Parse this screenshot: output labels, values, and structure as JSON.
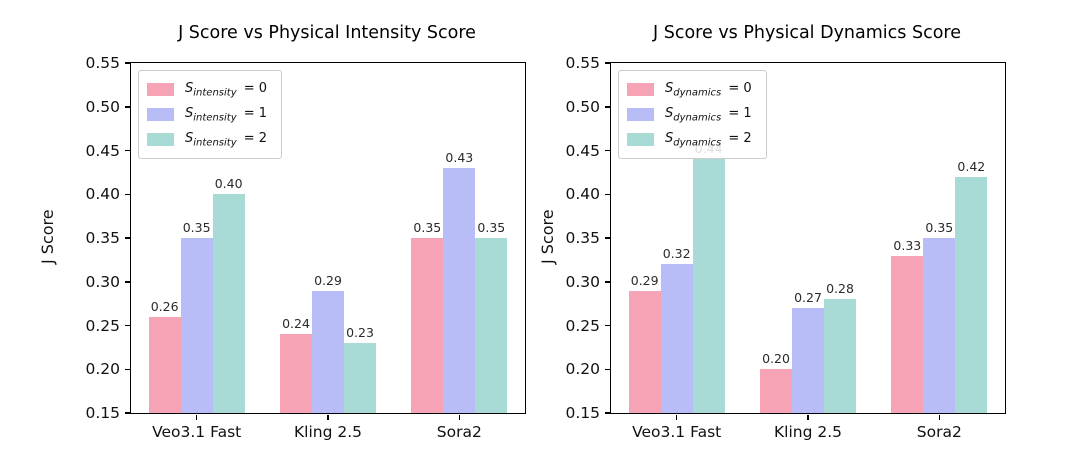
{
  "figure": {
    "background": "#ffffff"
  },
  "chart_data": [
    {
      "type": "bar",
      "title": "J Score vs Physical Intensity Score",
      "ylabel": "J Score",
      "xlabel": "",
      "categories": [
        "Veo3.1 Fast",
        "Kling 2.5",
        "Sora2"
      ],
      "series": [
        {
          "legend_var": "S",
          "legend_sub": "intensity",
          "legend_eq": "= 0",
          "color": "#f6a3b5",
          "values": [
            0.26,
            0.24,
            0.35
          ]
        },
        {
          "legend_var": "S",
          "legend_sub": "intensity",
          "legend_eq": "= 1",
          "color": "#b9bdf7",
          "values": [
            0.35,
            0.29,
            0.43
          ]
        },
        {
          "legend_var": "S",
          "legend_sub": "intensity",
          "legend_eq": "= 2",
          "color": "#a9dbd6",
          "values": [
            0.4,
            0.23,
            0.35
          ]
        }
      ],
      "ylim": [
        0.15,
        0.55
      ],
      "yticks": [
        "0.55",
        "0.50",
        "0.45",
        "0.40",
        "0.35",
        "0.30",
        "0.25",
        "0.20",
        "0.15"
      ],
      "bar_labels": [
        [
          "0.26",
          "0.24",
          "0.35"
        ],
        [
          "0.35",
          "0.29",
          "0.43"
        ],
        [
          "0.40",
          "0.23",
          "0.35"
        ]
      ],
      "legend_position": "upper left",
      "grid": false
    },
    {
      "type": "bar",
      "title": "J Score vs Physical Dynamics Score",
      "ylabel": "J Score",
      "xlabel": "",
      "categories": [
        "Veo3.1 Fast",
        "Kling 2.5",
        "Sora2"
      ],
      "series": [
        {
          "legend_var": "S",
          "legend_sub": "dynamics",
          "legend_eq": "= 0",
          "color": "#f6a3b5",
          "values": [
            0.29,
            0.2,
            0.33
          ]
        },
        {
          "legend_var": "S",
          "legend_sub": "dynamics",
          "legend_eq": "= 1",
          "color": "#b9bdf7",
          "values": [
            0.32,
            0.27,
            0.35
          ]
        },
        {
          "legend_var": "S",
          "legend_sub": "dynamics",
          "legend_eq": "= 2",
          "color": "#a9dbd6",
          "values": [
            0.44,
            0.28,
            0.42
          ]
        }
      ],
      "ylim": [
        0.15,
        0.55
      ],
      "yticks": [
        "0.55",
        "0.50",
        "0.45",
        "0.40",
        "0.35",
        "0.30",
        "0.25",
        "0.20",
        "0.15"
      ],
      "bar_labels": [
        [
          "0.29",
          "0.20",
          "0.33"
        ],
        [
          "0.32",
          "0.27",
          "0.35"
        ],
        [
          "0.44",
          "0.28",
          "0.42"
        ]
      ],
      "legend_position": "upper left",
      "grid": false
    }
  ]
}
